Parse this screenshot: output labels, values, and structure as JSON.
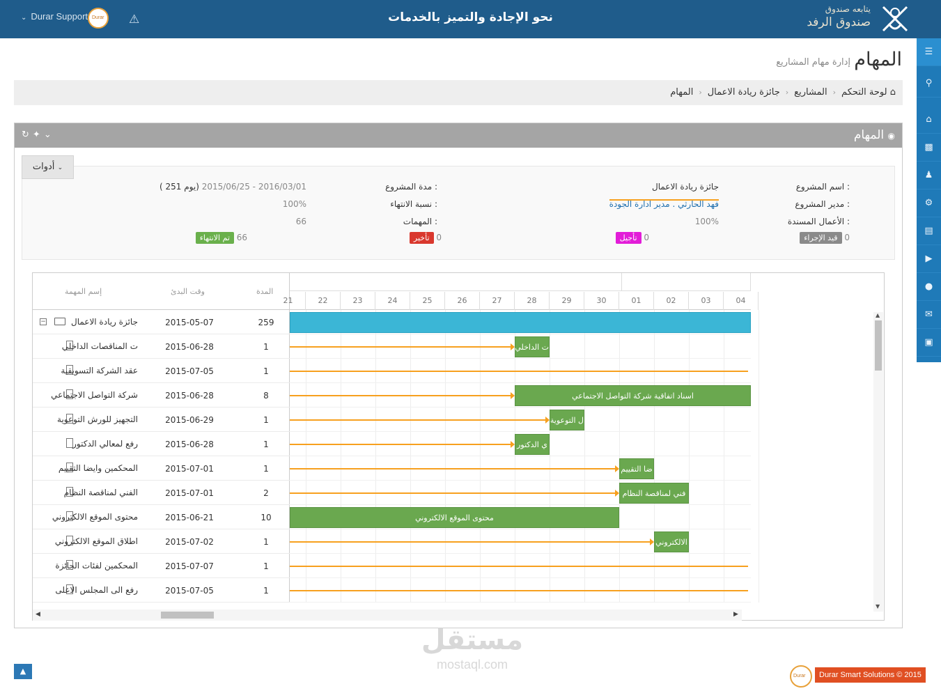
{
  "topbar": {
    "title": "نحو الإجادة والتميز بالخدمات",
    "user": "Durar Support",
    "brand_line1": "يتابعه صندوق",
    "brand_line2": "صندوق الرفد",
    "user_logo_text": "Durar"
  },
  "header": {
    "title": "المهام",
    "subtitle": "إدارة مهام المشاريع"
  },
  "breadcrumb": [
    "لوحة التحكم",
    "المشاريع",
    "جائزة ريادة الاعمال",
    "المهام"
  ],
  "portlet": {
    "title": "المهام",
    "tools_label": "أدوات"
  },
  "project_info": {
    "name_label": "اسم المشروع :",
    "name_value": "جائزة ريادة الاعمال",
    "manager_label": "مدير المشروع :",
    "manager_value": "فهد الحارثي . مدير ادارة الجودة",
    "assigned_label": "الأعمال المسندة :",
    "assigned_value": "100%",
    "duration_label": "مدة المشروع :",
    "duration_value": "2015/06/25 - 2016/03/01",
    "duration_days": "( 251 يوم)",
    "completion_label": "نسبة الانتهاء :",
    "completion_value": "100%",
    "tasks_label": "المهمات :",
    "tasks_value": "66",
    "status": [
      {
        "label": "قيد الإجراء",
        "count": "0",
        "color": "#8a8a8a"
      },
      {
        "label": "تأجيل",
        "count": "0",
        "color": "#e21dd8"
      },
      {
        "label": "تأخير",
        "count": "0",
        "color": "#d9382e"
      },
      {
        "label": "تم الانتهاء",
        "count": "66",
        "color": "#6ab04c"
      }
    ]
  },
  "gantt": {
    "columns": {
      "name": "إسم المهمة",
      "start": "وقت البدئ",
      "duration": "المدة"
    },
    "days": [
      "21",
      "22",
      "23",
      "24",
      "25",
      "26",
      "27",
      "28",
      "29",
      "30",
      "01",
      "02",
      "03",
      "04"
    ],
    "rows": [
      {
        "name": "جائزة ريادة الاعمال",
        "start": "2015-05-07",
        "duration": "259",
        "bar": "",
        "parent": true
      },
      {
        "name": "ت المناقصات الداخلي",
        "start": "2015-06-28",
        "duration": "1",
        "bar": "ت الداخلي"
      },
      {
        "name": "عقد الشركة التسويقية",
        "start": "2015-07-05",
        "duration": "1",
        "bar": ""
      },
      {
        "name": "شركة التواصل الاجتماعي",
        "start": "2015-06-28",
        "duration": "8",
        "bar": "اسناد اتفاقية شركة التواصل الاجتماعي"
      },
      {
        "name": "التجهيز للورش التوعوية",
        "start": "2015-06-29",
        "duration": "1",
        "bar": "ل التوعوية"
      },
      {
        "name": "رفع لمعالي الدكتور",
        "start": "2015-06-28",
        "duration": "1",
        "bar": "ي الدكتور"
      },
      {
        "name": "المحكمين وايضا التقييم",
        "start": "2015-07-01",
        "duration": "1",
        "bar": "ضا التقييم"
      },
      {
        "name": "الفني لمناقصة النظام",
        "start": "2015-07-01",
        "duration": "2",
        "bar": "فني لمناقصة النظام"
      },
      {
        "name": "محتوى الموقع الالكتروني",
        "start": "2015-06-21",
        "duration": "10",
        "bar": "محتوى الموقع الالكتروني"
      },
      {
        "name": "اطلاق الموقع الالكتروني",
        "start": "2015-07-02",
        "duration": "1",
        "bar": "الالكتروني"
      },
      {
        "name": "المحكمين لفئات الجائزة",
        "start": "2015-07-07",
        "duration": "1",
        "bar": ""
      },
      {
        "name": "رفع الى المجلس الاعلى",
        "start": "2015-07-05",
        "duration": "1",
        "bar": ""
      }
    ]
  },
  "footer": {
    "copyright": "Durar Smart Solutions © 2015",
    "logo_text": "Durar",
    "watermark_ar": "مستقل",
    "watermark_en": "mostaql.com"
  },
  "colors": {
    "topbar": "#1f5c8b",
    "nav": "#1f7ab8",
    "bar_green": "#6aa84f",
    "bar_cyan": "#3bb6d6",
    "link": "#f7a01e"
  }
}
